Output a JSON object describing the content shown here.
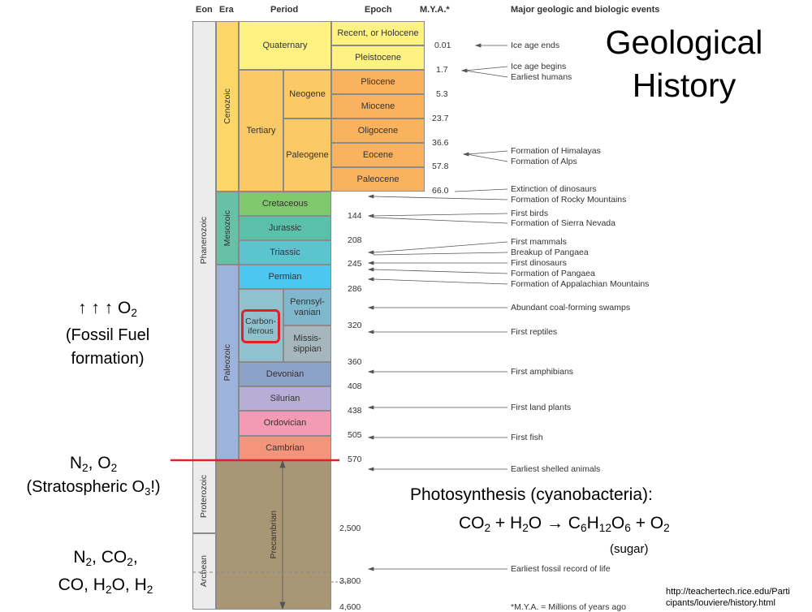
{
  "headers": {
    "eon": "Eon",
    "era": "Era",
    "period": "Period",
    "epoch": "Epoch",
    "mya": "M.Y.A.*",
    "events": "Major geologic and biologic events"
  },
  "title": {
    "line1": "Geological",
    "line2": "History"
  },
  "eons": [
    "Phanerozoic",
    "Proterozoic",
    "Archean"
  ],
  "eras": [
    "Cenozoic",
    "Mesozoic",
    "Paleozoic"
  ],
  "periods": {
    "quaternary": "Quaternary",
    "tertiary": "Tertiary",
    "neogene": "Neogene",
    "paleogene": "Paleogene",
    "cretaceous": "Cretaceous",
    "jurassic": "Jurassic",
    "triassic": "Triassic",
    "permian": "Permian",
    "carboniferous_a": "Carbon-",
    "carboniferous_b": "iferous",
    "penn_a": "Pennsyl-",
    "penn_b": "vanian",
    "miss_a": "Missis-",
    "miss_b": "sippian",
    "devonian": "Devonian",
    "silurian": "Silurian",
    "ordovician": "Ordovician",
    "cambrian": "Cambrian",
    "precambrian": "Precambrian"
  },
  "epochs": [
    "Recent, or Holocene",
    "Pleistocene",
    "Pliocene",
    "Miocene",
    "Oligocene",
    "Eocene",
    "Paleocene"
  ],
  "mya": [
    "0.01",
    "1.7",
    "5.3",
    "23.7",
    "36.6",
    "57.8",
    "66.0",
    "144",
    "208",
    "245",
    "286",
    "320",
    "360",
    "408",
    "438",
    "505",
    "570",
    "2,500",
    "3,800",
    "4,600"
  ],
  "events": [
    "Ice age ends",
    "Ice age begins",
    "Earliest humans",
    "Formation of Himalayas",
    "Formation of Alps",
    "Extinction of dinosaurs",
    "Formation of Rocky Mountains",
    "First birds",
    "Formation of Sierra Nevada",
    "First mammals",
    "Breakup of Pangaea",
    "First dinosaurs",
    "Formation of Pangaea",
    "Formation of Appalachian Mountains",
    "Abundant coal-forming swamps",
    "First reptiles",
    "First amphibians",
    "First land plants",
    "First fish",
    "Earliest shelled animals",
    "Earliest fossil record of life"
  ],
  "footnote": "*M.Y.A. = Millions of years ago",
  "left": {
    "arrows": "↑ ↑ ↑",
    "o2": "O",
    "o2_sub": "2",
    "fossil1": "(Fossil Fuel",
    "fossil2": "formation)",
    "n2o2": "N",
    "n2o2_sub": "2",
    "n2o2_mid": ", O",
    "n2o2_sub2": "2",
    "strat": "(Stratospheric O",
    "strat_sub": "3",
    "strat_end": "!)",
    "early1": "N",
    "early1_s": "2",
    "early1_m": ", CO",
    "early1_s2": "2",
    "early1_e": ",",
    "early2": "CO, H",
    "early2_s": "2",
    "early2_m": "O, H",
    "early2_s2": "2"
  },
  "photo": {
    "title": "Photosynthesis (cyanobacteria):",
    "eq_co": "CO",
    "eq_co_s": "2",
    "eq_plus_h": " + H",
    "eq_h_s": "2",
    "eq_o_arrow": "O → C",
    "eq_c_s": "6",
    "eq_h": "H",
    "eq_h12": "12",
    "eq_o": "O",
    "eq_o6": "6",
    "eq_plus_o": " + O",
    "eq_o2": "2",
    "sugar": "(sugar)"
  },
  "url": {
    "line1": "http://teachertech.rice.edu/Parti",
    "line2": "cipants/louviere/history.html"
  },
  "colors": {
    "quaternary": "#fff280",
    "tertiary": "#fbc966",
    "epoch": "#fbb25e",
    "cretaceous": "#7dc96b",
    "jurassic": "#5bbfaa",
    "triassic": "#5bc4cf",
    "permian": "#4cc8f0",
    "carb": "#8fc2ce",
    "devonian": "#8da2c9",
    "silurian": "#b7aed6",
    "ordovician": "#f59ab5",
    "cambrian": "#f4957b",
    "precambrian": "#a89674",
    "paleozoic": "#9db3dc",
    "mesozoic": "#66c1a7",
    "cenozoic": "#fcd667",
    "highlight": "#e0212a"
  }
}
